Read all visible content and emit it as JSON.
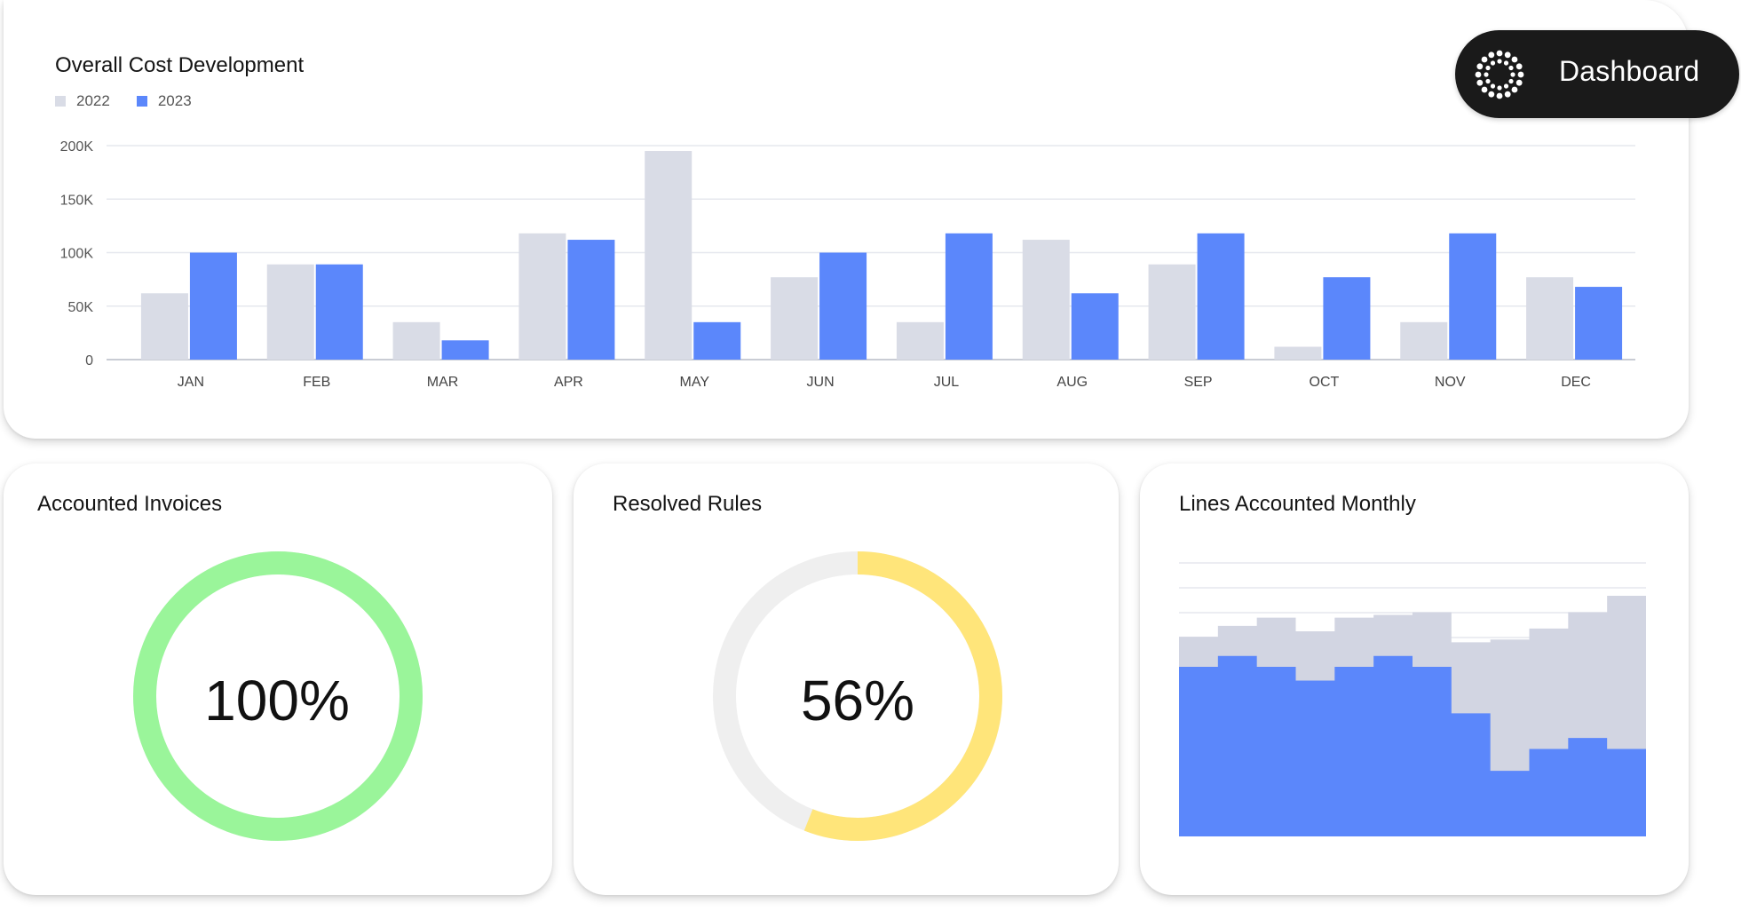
{
  "badge": {
    "label": "Dashboard",
    "icon": "dotted-circle-logo-icon"
  },
  "colors": {
    "series_2022": "#d9dce6",
    "series_2023": "#5b87fb",
    "invoices_ring": "#9af59a",
    "rules_ring": "#ffe57a",
    "ring_track": "#efefef",
    "lines_top": "#d2d5e2"
  },
  "cost_card": {
    "title": "Overall Cost Development"
  },
  "invoices_card": {
    "title": "Accounted Invoices",
    "percent_label": "100%"
  },
  "rules_card": {
    "title": "Resolved Rules",
    "percent_label": "56%"
  },
  "lines_card": {
    "title": "Lines Accounted Monthly"
  },
  "chart_data": [
    {
      "type": "bar",
      "title": "Overall Cost Development",
      "categories": [
        "JAN",
        "FEB",
        "MAR",
        "APR",
        "MAY",
        "JUN",
        "JUL",
        "AUG",
        "SEP",
        "OCT",
        "NOV",
        "DEC"
      ],
      "series": [
        {
          "name": "2022",
          "values": [
            62000,
            89000,
            35000,
            118000,
            195000,
            77000,
            35000,
            112000,
            89000,
            12000,
            35000,
            77000
          ]
        },
        {
          "name": "2023",
          "values": [
            100000,
            89000,
            18000,
            112000,
            35000,
            100000,
            118000,
            62000,
            118000,
            77000,
            118000,
            68000
          ]
        }
      ],
      "yticks": [
        "0",
        "50K",
        "100K",
        "150K",
        "200K"
      ],
      "ylim": [
        0,
        200000
      ],
      "grid": true,
      "legend": "top-left"
    },
    {
      "type": "pie",
      "title": "Accounted Invoices",
      "values": [
        100
      ],
      "label": "100%"
    },
    {
      "type": "pie",
      "title": "Resolved Rules",
      "values": [
        56,
        44
      ],
      "label": "56%"
    },
    {
      "type": "area",
      "title": "Lines Accounted Monthly",
      "x": [
        1,
        2,
        3,
        4,
        5,
        6,
        7,
        8,
        9,
        10,
        11,
        12
      ],
      "series": [
        {
          "values": [
            62,
            66,
            62,
            57,
            62,
            66,
            62,
            45,
            24,
            32,
            36,
            32
          ]
        },
        {
          "values": [
            73,
            77,
            80,
            75,
            80,
            81,
            82,
            71,
            72,
            76,
            82,
            88
          ]
        }
      ],
      "ylim": [
        0,
        100
      ],
      "grid": true
    }
  ]
}
